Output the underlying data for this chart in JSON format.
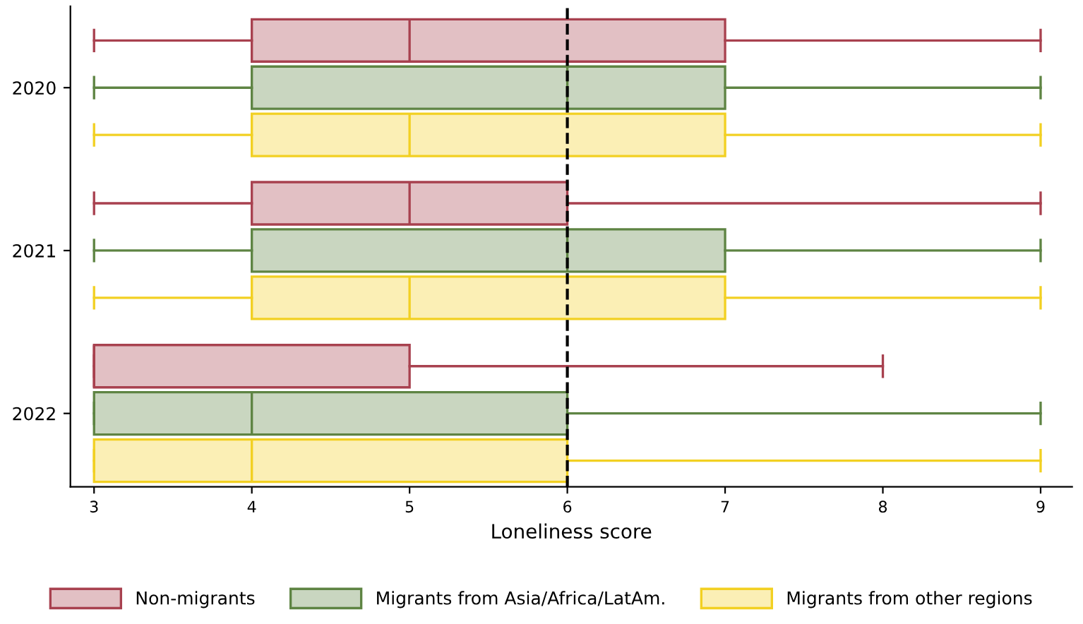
{
  "chart_data": {
    "type": "box",
    "orientation": "horizontal",
    "xlabel": "Loneliness score",
    "categories": [
      "2020",
      "2021",
      "2022"
    ],
    "series": [
      {
        "name": "Non-migrants",
        "color": "#a8414f",
        "boxes": [
          {
            "low": 3,
            "q1": 4,
            "median": 5,
            "q3": 7,
            "high": 9
          },
          {
            "low": 3,
            "q1": 4,
            "median": 5,
            "q3": 6,
            "high": 9
          },
          {
            "low": 3,
            "q1": 3,
            "median": 3,
            "q3": 5,
            "high": 8
          }
        ]
      },
      {
        "name": "Migrants from Asia/Africa/LatAm.",
        "color": "#5e8443",
        "boxes": [
          {
            "low": 3,
            "q1": 4,
            "median": 6,
            "q3": 7,
            "high": 9
          },
          {
            "low": 3,
            "q1": 4,
            "median": 6,
            "q3": 7,
            "high": 9
          },
          {
            "low": 3,
            "q1": 3,
            "median": 4,
            "q3": 6,
            "high": 9
          }
        ]
      },
      {
        "name": "Migrants from other regions",
        "color": "#f2d022",
        "boxes": [
          {
            "low": 3,
            "q1": 4,
            "median": 5,
            "q3": 7,
            "high": 9
          },
          {
            "low": 3,
            "q1": 4,
            "median": 5,
            "q3": 7,
            "high": 9
          },
          {
            "low": 3,
            "q1": 3,
            "median": 4,
            "q3": 6,
            "high": 9
          }
        ]
      }
    ],
    "xlim": [
      2.85,
      9.2
    ],
    "xticks": [
      3,
      4,
      5,
      6,
      7,
      8,
      9
    ],
    "ref_lines": [
      {
        "axis": "x",
        "value": 6,
        "color": "#000000",
        "line_style": "dashed"
      }
    ],
    "grid": false,
    "legend": "bottom"
  }
}
